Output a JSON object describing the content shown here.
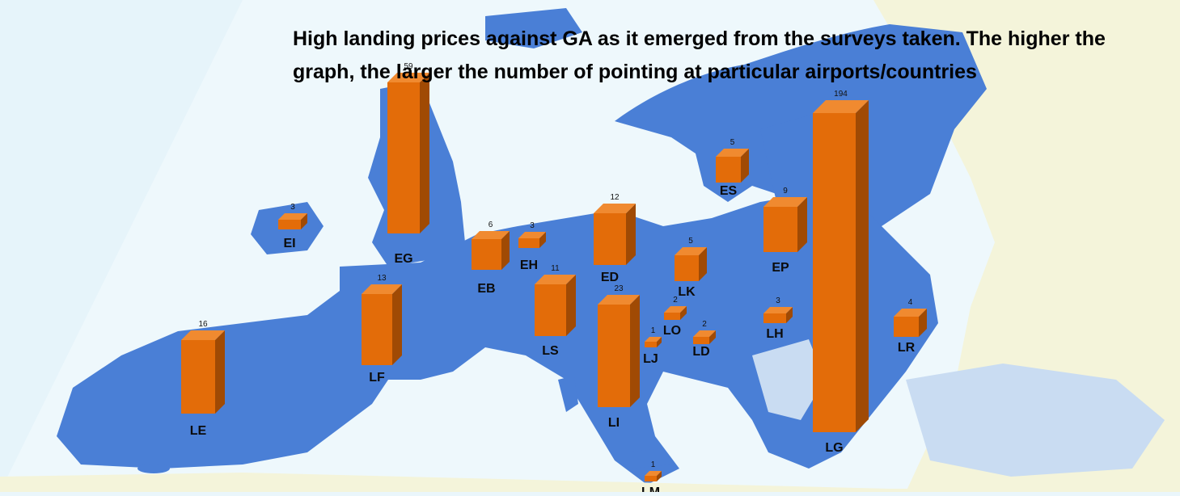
{
  "title": "High landing prices against GA as it emerged from the surveys taken. The higher the graph, the larger the number of pointing at particular airports/countries",
  "colors": {
    "bar_front": "#e36c09",
    "bar_top": "#f08a30",
    "bar_side": "#a04a04",
    "land": "#4a7fd6",
    "sea": "#e6f4fa",
    "non_eu_land": "#f3f3d9"
  },
  "chart_data": {
    "type": "bar",
    "title": "High landing prices against GA as it emerged from the surveys taken. The higher the graph, the larger the number of pointing at particular airports/countries",
    "xlabel": "",
    "ylabel": "",
    "legend": "none",
    "grid": false,
    "categories": [
      "EI",
      "EG",
      "EB",
      "EH",
      "ED",
      "ES",
      "EP",
      "LK",
      "LF",
      "LS",
      "LI",
      "LO",
      "LJ",
      "LD",
      "LH",
      "LE",
      "LG",
      "LR",
      "LM"
    ],
    "values": [
      3,
      59,
      6,
      3,
      12,
      5,
      9,
      5,
      13,
      11,
      23,
      2,
      1,
      2,
      3,
      16,
      194,
      4,
      1
    ]
  }
}
